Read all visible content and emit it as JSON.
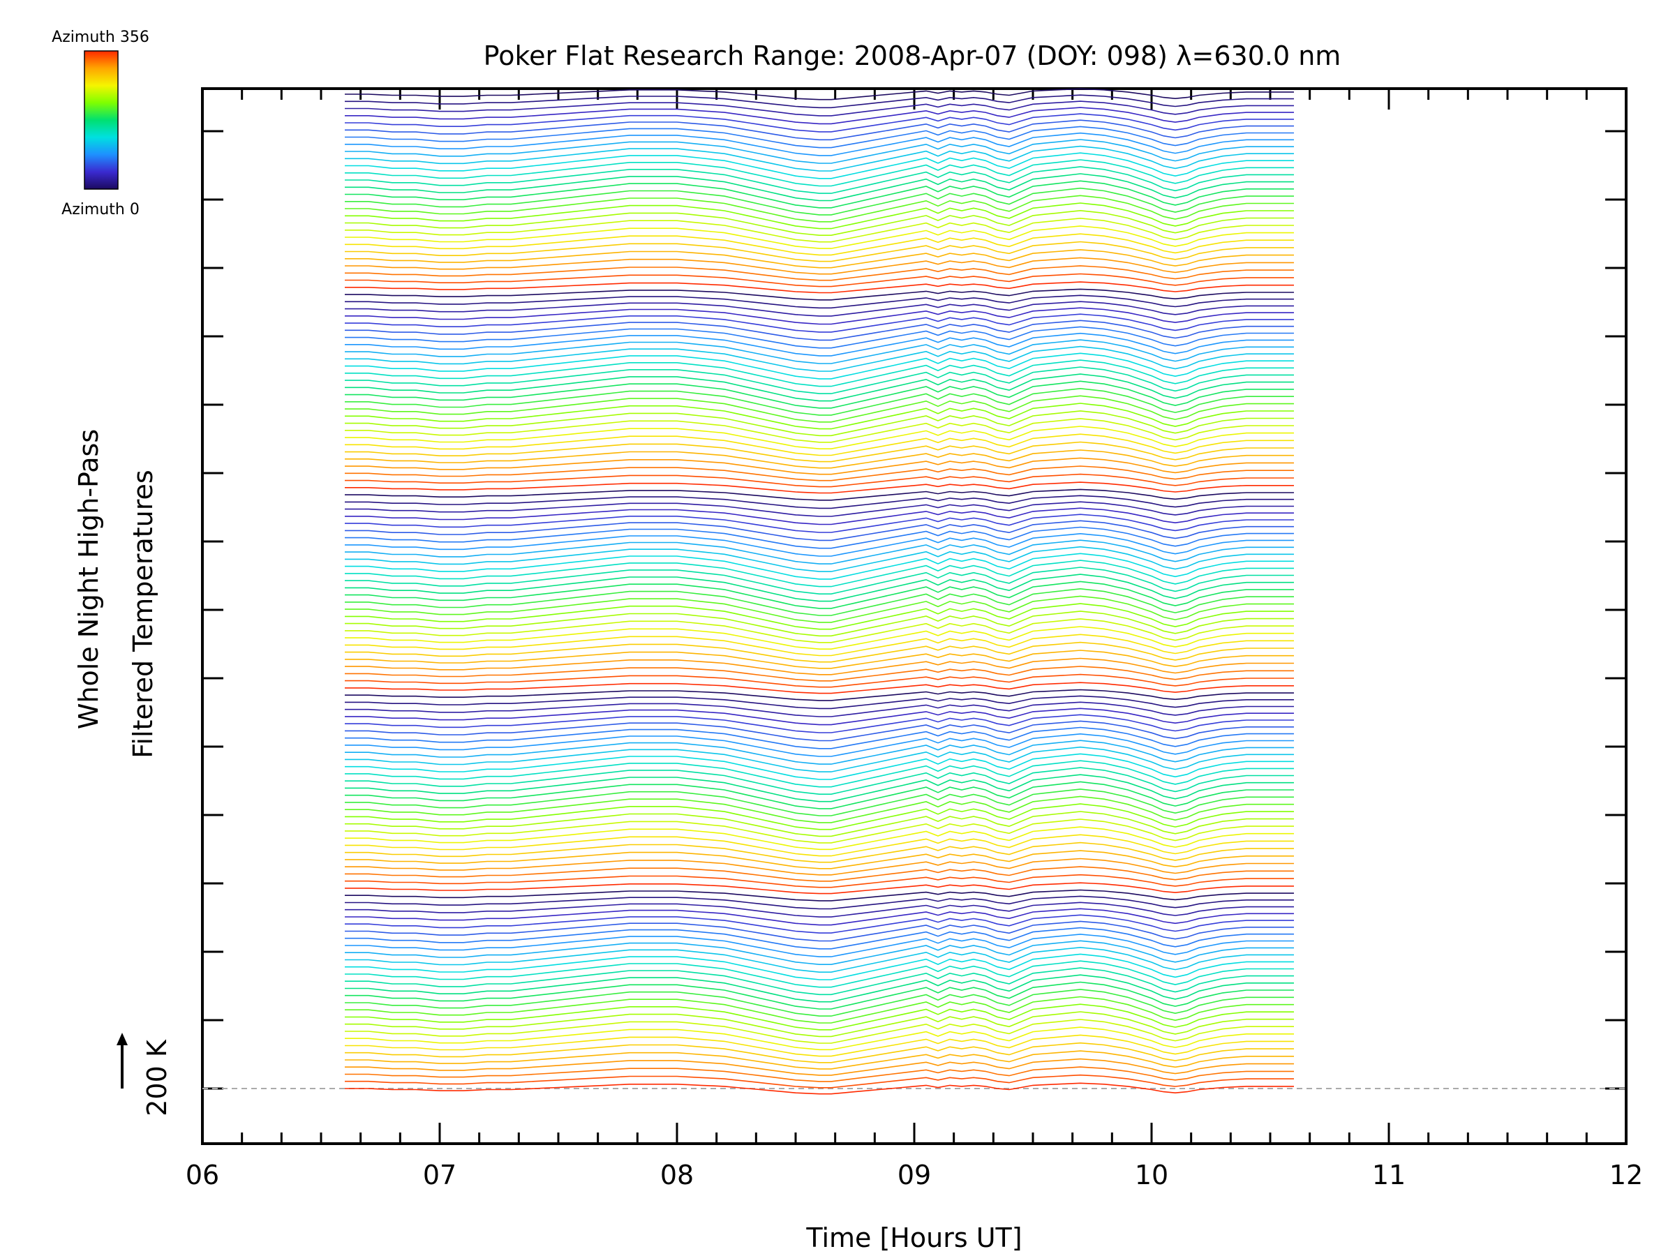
{
  "chart_data": {
    "type": "line",
    "title": "Poker Flat Research Range: 2008-Apr-07 (DOY: 098) λ=630.0 nm",
    "xlabel": "Time [Hours UT]",
    "ylabel_line1": "Whole Night High-Pass",
    "ylabel_line2": "Filtered Temperatures",
    "scale_bar_label": "200 K",
    "xlim": [
      6,
      12
    ],
    "x_ticks": [
      "06",
      "07",
      "08",
      "09",
      "10",
      "11",
      "12"
    ],
    "grid": false,
    "colorbar": {
      "top_label": "Azimuth 356",
      "bottom_label": "Azimuth 0",
      "colors": [
        "#ff2a00",
        "#ffa500",
        "#f5f500",
        "#7fff00",
        "#00e070",
        "#00e0e0",
        "#1e90ff",
        "#3a2ad0",
        "#1c0a60"
      ]
    },
    "time_range_hours": [
      6.6,
      10.62
    ],
    "num_azimuth_traces": 140,
    "reference_profile": {
      "x": [
        6.6,
        6.7,
        6.8,
        6.9,
        7.0,
        7.1,
        7.2,
        7.3,
        7.4,
        7.5,
        7.6,
        7.7,
        7.8,
        7.9,
        8.0,
        8.1,
        8.2,
        8.3,
        8.4,
        8.5,
        8.6,
        8.65,
        8.7,
        8.8,
        8.9,
        9.0,
        9.05,
        9.1,
        9.15,
        9.2,
        9.25,
        9.3,
        9.35,
        9.4,
        9.45,
        9.5,
        9.6,
        9.7,
        9.8,
        9.9,
        10.0,
        10.05,
        10.1,
        10.15,
        10.2,
        10.3,
        10.4,
        10.5,
        10.62
      ],
      "y": [
        0,
        0,
        -10,
        -10,
        -20,
        -20,
        -10,
        -10,
        0,
        10,
        20,
        30,
        40,
        40,
        40,
        30,
        20,
        0,
        -20,
        -40,
        -50,
        -50,
        -40,
        -20,
        0,
        20,
        30,
        10,
        30,
        20,
        30,
        20,
        0,
        -10,
        10,
        30,
        40,
        50,
        40,
        20,
        -10,
        -30,
        -40,
        -30,
        -10,
        10,
        20,
        20,
        20
      ]
    }
  }
}
